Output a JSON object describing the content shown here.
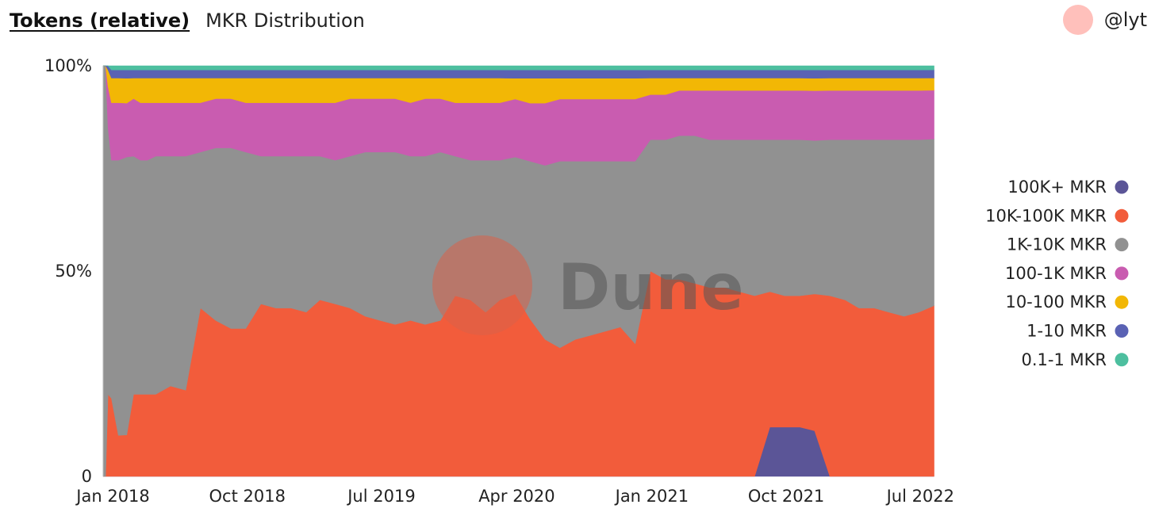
{
  "header": {
    "tab": "Tokens (relative)",
    "title": "MKR Distribution"
  },
  "author": {
    "handle": "@lyt"
  },
  "watermark": {
    "text": "Dune"
  },
  "chart_data": {
    "type": "area",
    "stacked": "percent",
    "x": [
      "2017-12-15",
      "2017-12-20",
      "2017-12-25",
      "2018-01-01",
      "2018-01-15",
      "2018-02-01",
      "2018-02-15",
      "2018-03-01",
      "2018-03-15",
      "2018-04-01",
      "2018-05-01",
      "2018-06-01",
      "2018-07-01",
      "2018-08-01",
      "2018-09-01",
      "2018-10-01",
      "2018-11-01",
      "2018-12-01",
      "2019-01-01",
      "2019-02-01",
      "2019-03-01",
      "2019-04-01",
      "2019-05-01",
      "2019-06-01",
      "2019-07-01",
      "2019-08-01",
      "2019-09-01",
      "2019-10-01",
      "2019-11-01",
      "2019-12-01",
      "2020-01-01",
      "2020-02-01",
      "2020-03-01",
      "2020-04-01",
      "2020-05-01",
      "2020-06-01",
      "2020-07-01",
      "2020-08-01",
      "2020-09-01",
      "2020-10-01",
      "2020-11-01",
      "2020-12-01",
      "2021-01-01",
      "2021-02-01",
      "2021-03-01",
      "2021-04-01",
      "2021-05-01",
      "2021-06-01",
      "2021-07-01",
      "2021-08-01",
      "2021-09-01",
      "2021-10-01",
      "2021-11-01",
      "2021-12-01",
      "2022-01-01",
      "2022-02-01",
      "2022-03-01",
      "2022-04-01",
      "2022-05-01",
      "2022-06-01",
      "2022-07-01",
      "2022-08-01"
    ],
    "series": [
      {
        "name": "100K+ MKR",
        "color": "#5b5597",
        "values": [
          0,
          0,
          0,
          0,
          0,
          0,
          0,
          0,
          0,
          0,
          0,
          0,
          0,
          0,
          0,
          0,
          0,
          0,
          0,
          0,
          0,
          0,
          0,
          0,
          0,
          0,
          0,
          0,
          0,
          0,
          0,
          0,
          0,
          0,
          0,
          0,
          0,
          0,
          0,
          0,
          0,
          0,
          0,
          0,
          0,
          0,
          0,
          0,
          0,
          0,
          12,
          12,
          12,
          11,
          0,
          0,
          0,
          0,
          0,
          0,
          0,
          0
        ]
      },
      {
        "name": "10K-100K MKR",
        "color": "#f25c3b",
        "values": [
          0,
          0,
          20,
          19,
          10,
          10,
          20,
          20,
          20,
          20,
          22,
          21,
          41,
          38,
          36,
          36,
          42,
          41,
          41,
          40,
          43,
          42,
          41,
          39,
          38,
          37,
          38,
          37,
          38,
          44,
          43,
          40,
          43,
          44,
          38,
          33,
          31,
          33,
          34,
          35,
          36,
          32,
          50,
          48,
          48,
          47,
          46,
          46,
          45,
          44,
          33,
          32,
          32,
          33,
          44,
          43,
          41,
          41,
          40,
          39,
          40,
          42
        ]
      },
      {
        "name": "1K-10K MKR",
        "color": "#919191",
        "values": [
          100,
          100,
          65,
          58,
          67,
          67,
          58,
          57,
          57,
          58,
          56,
          57,
          38,
          42,
          44,
          43,
          36,
          37,
          37,
          38,
          35,
          35,
          37,
          40,
          41,
          42,
          40,
          41,
          41,
          34,
          34,
          37,
          34,
          33,
          38,
          42,
          45,
          43,
          42,
          41,
          40,
          44,
          32,
          34,
          35,
          36,
          36,
          36,
          37,
          38,
          37,
          38,
          38,
          37,
          38,
          39,
          41,
          41,
          42,
          43,
          42,
          41
        ]
      },
      {
        "name": "100-1K MKR",
        "color": "#c95cb0",
        "values": [
          0,
          0,
          10,
          14,
          14,
          13,
          14,
          14,
          14,
          13,
          13,
          13,
          12,
          12,
          12,
          12,
          13,
          13,
          13,
          13,
          13,
          14,
          14,
          13,
          13,
          13,
          13,
          14,
          13,
          13,
          14,
          14,
          14,
          14,
          14,
          15,
          15,
          15,
          15,
          15,
          15,
          15,
          11,
          11,
          11,
          11,
          12,
          12,
          12,
          12,
          12,
          12,
          12,
          12,
          12,
          12,
          12,
          12,
          12,
          12,
          12,
          12
        ]
      },
      {
        "name": "10-100 MKR",
        "color": "#f2b705",
        "values": [
          0,
          0,
          4,
          6,
          6,
          6,
          5,
          6,
          6,
          6,
          6,
          6,
          6,
          5,
          5,
          6,
          6,
          6,
          6,
          6,
          6,
          6,
          5,
          5,
          5,
          5,
          6,
          5,
          5,
          6,
          6,
          6,
          6,
          5,
          6,
          6,
          5,
          5,
          5,
          5,
          5,
          5,
          4,
          4,
          3,
          3,
          3,
          3,
          3,
          3,
          3,
          3,
          3,
          3,
          3,
          3,
          3,
          3,
          3,
          3,
          3,
          3
        ]
      },
      {
        "name": "1-10 MKR",
        "color": "#5a62b4",
        "values": [
          0,
          0,
          1,
          2,
          2,
          2,
          2,
          2,
          2,
          2,
          2,
          2,
          2,
          2,
          2,
          2,
          2,
          2,
          2,
          2,
          2,
          2,
          2,
          2,
          2,
          2,
          2,
          2,
          2,
          2,
          2,
          2,
          2,
          2,
          2,
          2,
          2,
          2,
          2,
          2,
          2,
          2,
          2,
          2,
          2,
          2,
          2,
          2,
          2,
          2,
          2,
          2,
          2,
          2,
          2,
          2,
          2,
          2,
          2,
          2,
          2,
          2
        ]
      },
      {
        "name": "0.1-1 MKR",
        "color": "#4dbf9f",
        "values": [
          0,
          0,
          0,
          1,
          1,
          1,
          1,
          1,
          1,
          1,
          1,
          1,
          1,
          1,
          1,
          1,
          1,
          1,
          1,
          1,
          1,
          1,
          1,
          1,
          1,
          1,
          1,
          1,
          1,
          1,
          1,
          1,
          1,
          1,
          1,
          1,
          1,
          1,
          1,
          1,
          1,
          1,
          1,
          1,
          1,
          1,
          1,
          1,
          1,
          1,
          1,
          1,
          1,
          1,
          1,
          1,
          1,
          1,
          1,
          1,
          1,
          1
        ]
      }
    ],
    "x_range": [
      "2017-12-15",
      "2022-08-05"
    ],
    "x_ticks": [
      {
        "date": "2018-01-01",
        "label": "Jan 2018"
      },
      {
        "date": "2018-10-01",
        "label": "Oct 2018"
      },
      {
        "date": "2019-07-01",
        "label": "Jul 2019"
      },
      {
        "date": "2020-04-01",
        "label": "Apr 2020"
      },
      {
        "date": "2021-01-01",
        "label": "Jan 2021"
      },
      {
        "date": "2021-10-01",
        "label": "Oct 2021"
      },
      {
        "date": "2022-07-01",
        "label": "Jul 2022"
      }
    ],
    "y_ticks": [
      {
        "value": 0,
        "label": "0"
      },
      {
        "value": 50,
        "label": "50%"
      },
      {
        "value": 100,
        "label": "100%"
      }
    ],
    "ylim": [
      0,
      100
    ],
    "grid": false,
    "legend_position": "right"
  }
}
